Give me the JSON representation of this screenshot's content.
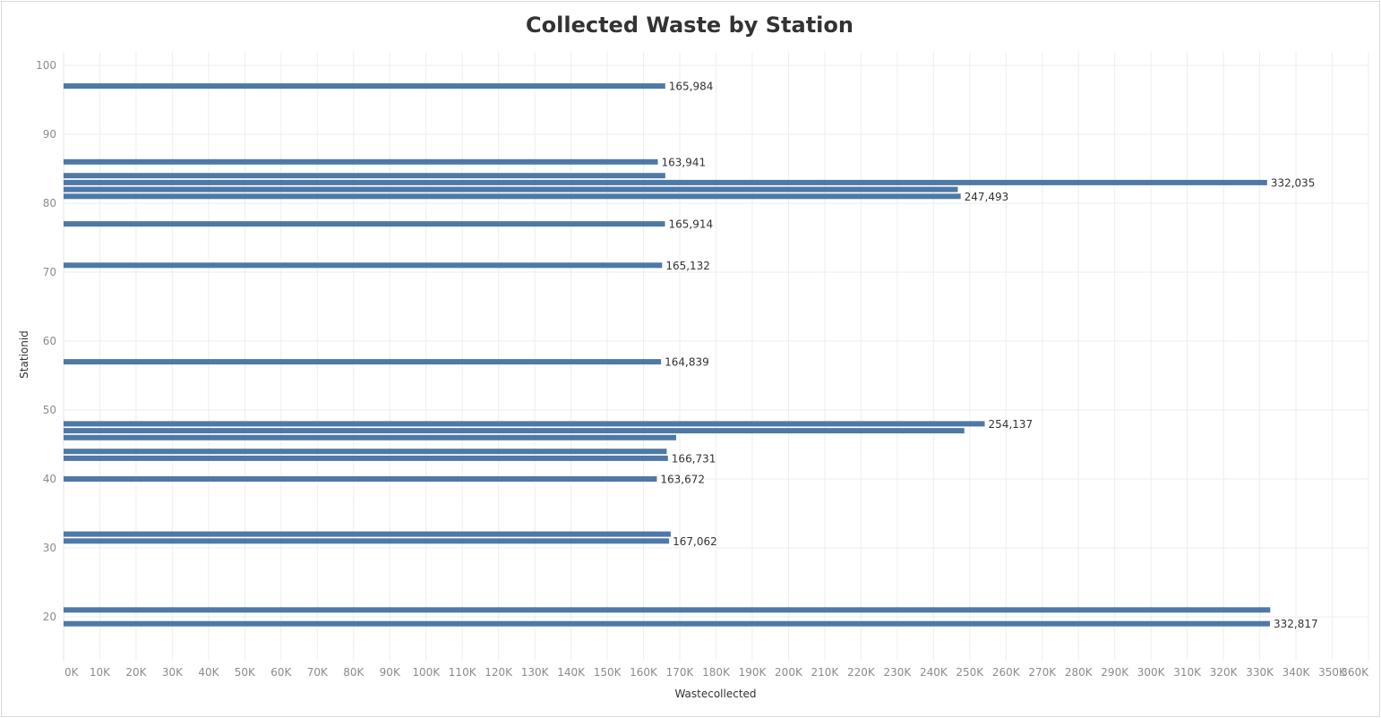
{
  "chart_data": {
    "type": "bar",
    "orientation": "horizontal",
    "title": "Collected Waste by Station",
    "xlabel": "Wastecollected",
    "ylabel": "Stationid",
    "xlim": [
      0,
      360000
    ],
    "ylim": [
      14,
      101
    ],
    "grid": true,
    "bar_color": "#4e79a7",
    "x_ticks": [
      {
        "value": 0,
        "label": "0K"
      },
      {
        "value": 10000,
        "label": "10K"
      },
      {
        "value": 20000,
        "label": "20K"
      },
      {
        "value": 30000,
        "label": "30K"
      },
      {
        "value": 40000,
        "label": "40K"
      },
      {
        "value": 50000,
        "label": "50K"
      },
      {
        "value": 60000,
        "label": "60K"
      },
      {
        "value": 70000,
        "label": "70K"
      },
      {
        "value": 80000,
        "label": "80K"
      },
      {
        "value": 90000,
        "label": "90K"
      },
      {
        "value": 100000,
        "label": "100K"
      },
      {
        "value": 110000,
        "label": "110K"
      },
      {
        "value": 120000,
        "label": "120K"
      },
      {
        "value": 130000,
        "label": "130K"
      },
      {
        "value": 140000,
        "label": "140K"
      },
      {
        "value": 150000,
        "label": "150K"
      },
      {
        "value": 160000,
        "label": "160K"
      },
      {
        "value": 170000,
        "label": "170K"
      },
      {
        "value": 180000,
        "label": "180K"
      },
      {
        "value": 190000,
        "label": "190K"
      },
      {
        "value": 200000,
        "label": "200K"
      },
      {
        "value": 210000,
        "label": "210K"
      },
      {
        "value": 220000,
        "label": "220K"
      },
      {
        "value": 230000,
        "label": "230K"
      },
      {
        "value": 240000,
        "label": "240K"
      },
      {
        "value": 250000,
        "label": "250K"
      },
      {
        "value": 260000,
        "label": "260K"
      },
      {
        "value": 270000,
        "label": "270K"
      },
      {
        "value": 280000,
        "label": "280K"
      },
      {
        "value": 290000,
        "label": "290K"
      },
      {
        "value": 300000,
        "label": "300K"
      },
      {
        "value": 310000,
        "label": "310K"
      },
      {
        "value": 320000,
        "label": "320K"
      },
      {
        "value": 330000,
        "label": "330K"
      },
      {
        "value": 340000,
        "label": "340K"
      },
      {
        "value": 350000,
        "label": "350K"
      },
      {
        "value": 360000,
        "label": "360K"
      }
    ],
    "y_ticks": [
      {
        "value": 20,
        "label": "20"
      },
      {
        "value": 30,
        "label": "30"
      },
      {
        "value": 40,
        "label": "40"
      },
      {
        "value": 50,
        "label": "50"
      },
      {
        "value": 60,
        "label": "60"
      },
      {
        "value": 70,
        "label": "70"
      },
      {
        "value": 80,
        "label": "80"
      },
      {
        "value": 90,
        "label": "90"
      },
      {
        "value": 100,
        "label": "100"
      }
    ],
    "points": [
      {
        "station": 97,
        "value": 165984,
        "label": "165,984"
      },
      {
        "station": 86,
        "value": 163941,
        "label": "163,941"
      },
      {
        "station": 84,
        "value": 166000,
        "label": ""
      },
      {
        "station": 83,
        "value": 332035,
        "label": "332,035"
      },
      {
        "station": 82,
        "value": 246700,
        "label": ""
      },
      {
        "station": 81,
        "value": 247493,
        "label": "247,493"
      },
      {
        "station": 77,
        "value": 165914,
        "label": "165,914"
      },
      {
        "station": 71,
        "value": 165132,
        "label": "165,132"
      },
      {
        "station": 57,
        "value": 164839,
        "label": "164,839"
      },
      {
        "station": 48,
        "value": 254137,
        "label": "254,137"
      },
      {
        "station": 47,
        "value": 248500,
        "label": ""
      },
      {
        "station": 46,
        "value": 169000,
        "label": ""
      },
      {
        "station": 44,
        "value": 166400,
        "label": ""
      },
      {
        "station": 43,
        "value": 166731,
        "label": "166,731"
      },
      {
        "station": 40,
        "value": 163672,
        "label": "163,672"
      },
      {
        "station": 32,
        "value": 167500,
        "label": ""
      },
      {
        "station": 31,
        "value": 167062,
        "label": "167,062"
      },
      {
        "station": 21,
        "value": 332900,
        "label": ""
      },
      {
        "station": 19,
        "value": 332817,
        "label": "332,817"
      }
    ]
  }
}
